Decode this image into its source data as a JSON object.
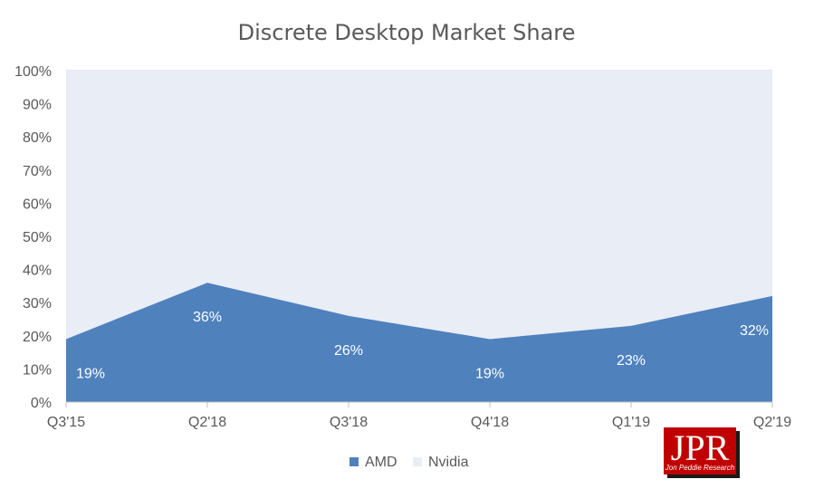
{
  "chart_data": {
    "type": "area",
    "title": "Discrete Desktop Market Share",
    "categories": [
      "Q3'15",
      "Q2'18",
      "Q3'18",
      "Q4'18",
      "Q1'19",
      "Q2'19"
    ],
    "series": [
      {
        "name": "AMD",
        "values": [
          19,
          36,
          26,
          19,
          23,
          32
        ],
        "labels": [
          "19%",
          "36%",
          "26%",
          "19%",
          "23%",
          "32%"
        ],
        "color": "#4f81bd"
      },
      {
        "name": "Nvidia",
        "values": [
          81,
          64,
          74,
          81,
          77,
          68
        ],
        "color": "#e9edf6"
      }
    ],
    "y_ticks": [
      "0%",
      "10%",
      "20%",
      "30%",
      "40%",
      "50%",
      "60%",
      "70%",
      "80%",
      "90%",
      "100%"
    ],
    "ylim": [
      0,
      100
    ],
    "stacked": true,
    "grid": true,
    "legend": "bottom-center"
  },
  "logo": {
    "mark": "JPR",
    "subtitle": "Jon Peddie Research",
    "color": "#c00000"
  }
}
